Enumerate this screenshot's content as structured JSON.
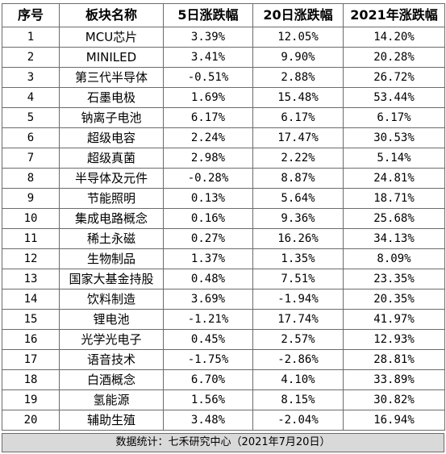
{
  "table": {
    "headers": [
      "序号",
      "板块名称",
      "5日涨跌幅",
      "20日涨跌幅",
      "2021年涨跌幅"
    ],
    "rows": [
      {
        "no": "1",
        "name": "MCU芯片",
        "d5": "3.39%",
        "d20": "12.05%",
        "ytd": "14.20%"
      },
      {
        "no": "2",
        "name": "MINILED",
        "d5": "3.41%",
        "d20": "9.90%",
        "ytd": "20.28%"
      },
      {
        "no": "3",
        "name": "第三代半导体",
        "d5": "-0.51%",
        "d20": "2.88%",
        "ytd": "26.72%"
      },
      {
        "no": "4",
        "name": "石墨电极",
        "d5": "1.69%",
        "d20": "15.48%",
        "ytd": "53.44%"
      },
      {
        "no": "5",
        "name": "钠离子电池",
        "d5": "6.17%",
        "d20": "6.17%",
        "ytd": "6.17%"
      },
      {
        "no": "6",
        "name": "超级电容",
        "d5": "2.24%",
        "d20": "17.47%",
        "ytd": "30.53%"
      },
      {
        "no": "7",
        "name": "超级真菌",
        "d5": "2.98%",
        "d20": "2.22%",
        "ytd": "5.14%"
      },
      {
        "no": "8",
        "name": "半导体及元件",
        "d5": "-0.28%",
        "d20": "8.87%",
        "ytd": "24.81%"
      },
      {
        "no": "9",
        "name": "节能照明",
        "d5": "0.13%",
        "d20": "5.64%",
        "ytd": "18.71%"
      },
      {
        "no": "10",
        "name": "集成电路概念",
        "d5": "0.16%",
        "d20": "9.36%",
        "ytd": "25.68%"
      },
      {
        "no": "11",
        "name": "稀土永磁",
        "d5": "0.27%",
        "d20": "16.26%",
        "ytd": "34.13%"
      },
      {
        "no": "12",
        "name": "生物制品",
        "d5": "1.37%",
        "d20": "1.35%",
        "ytd": "8.09%"
      },
      {
        "no": "13",
        "name": "国家大基金持股",
        "d5": "0.48%",
        "d20": "7.51%",
        "ytd": "23.35%"
      },
      {
        "no": "14",
        "name": "饮料制造",
        "d5": "3.69%",
        "d20": "-1.94%",
        "ytd": "20.35%"
      },
      {
        "no": "15",
        "name": "锂电池",
        "d5": "-1.21%",
        "d20": "17.74%",
        "ytd": "41.97%"
      },
      {
        "no": "16",
        "name": "光学光电子",
        "d5": "0.45%",
        "d20": "2.57%",
        "ytd": "12.93%"
      },
      {
        "no": "17",
        "name": "语音技术",
        "d5": "-1.75%",
        "d20": "-2.86%",
        "ytd": "28.81%"
      },
      {
        "no": "18",
        "name": "白酒概念",
        "d5": "6.70%",
        "d20": "4.10%",
        "ytd": "33.89%"
      },
      {
        "no": "19",
        "name": "氢能源",
        "d5": "1.56%",
        "d20": "8.15%",
        "ytd": "30.82%"
      },
      {
        "no": "20",
        "name": "辅助生殖",
        "d5": "3.48%",
        "d20": "-2.04%",
        "ytd": "16.94%"
      }
    ]
  },
  "footer": {
    "source": "数据统计：七禾研究中心（2021年7月20日）"
  },
  "colors": {
    "border": "#6b6b6b",
    "footer_bg": "#d9d9d9",
    "text": "#000000"
  }
}
